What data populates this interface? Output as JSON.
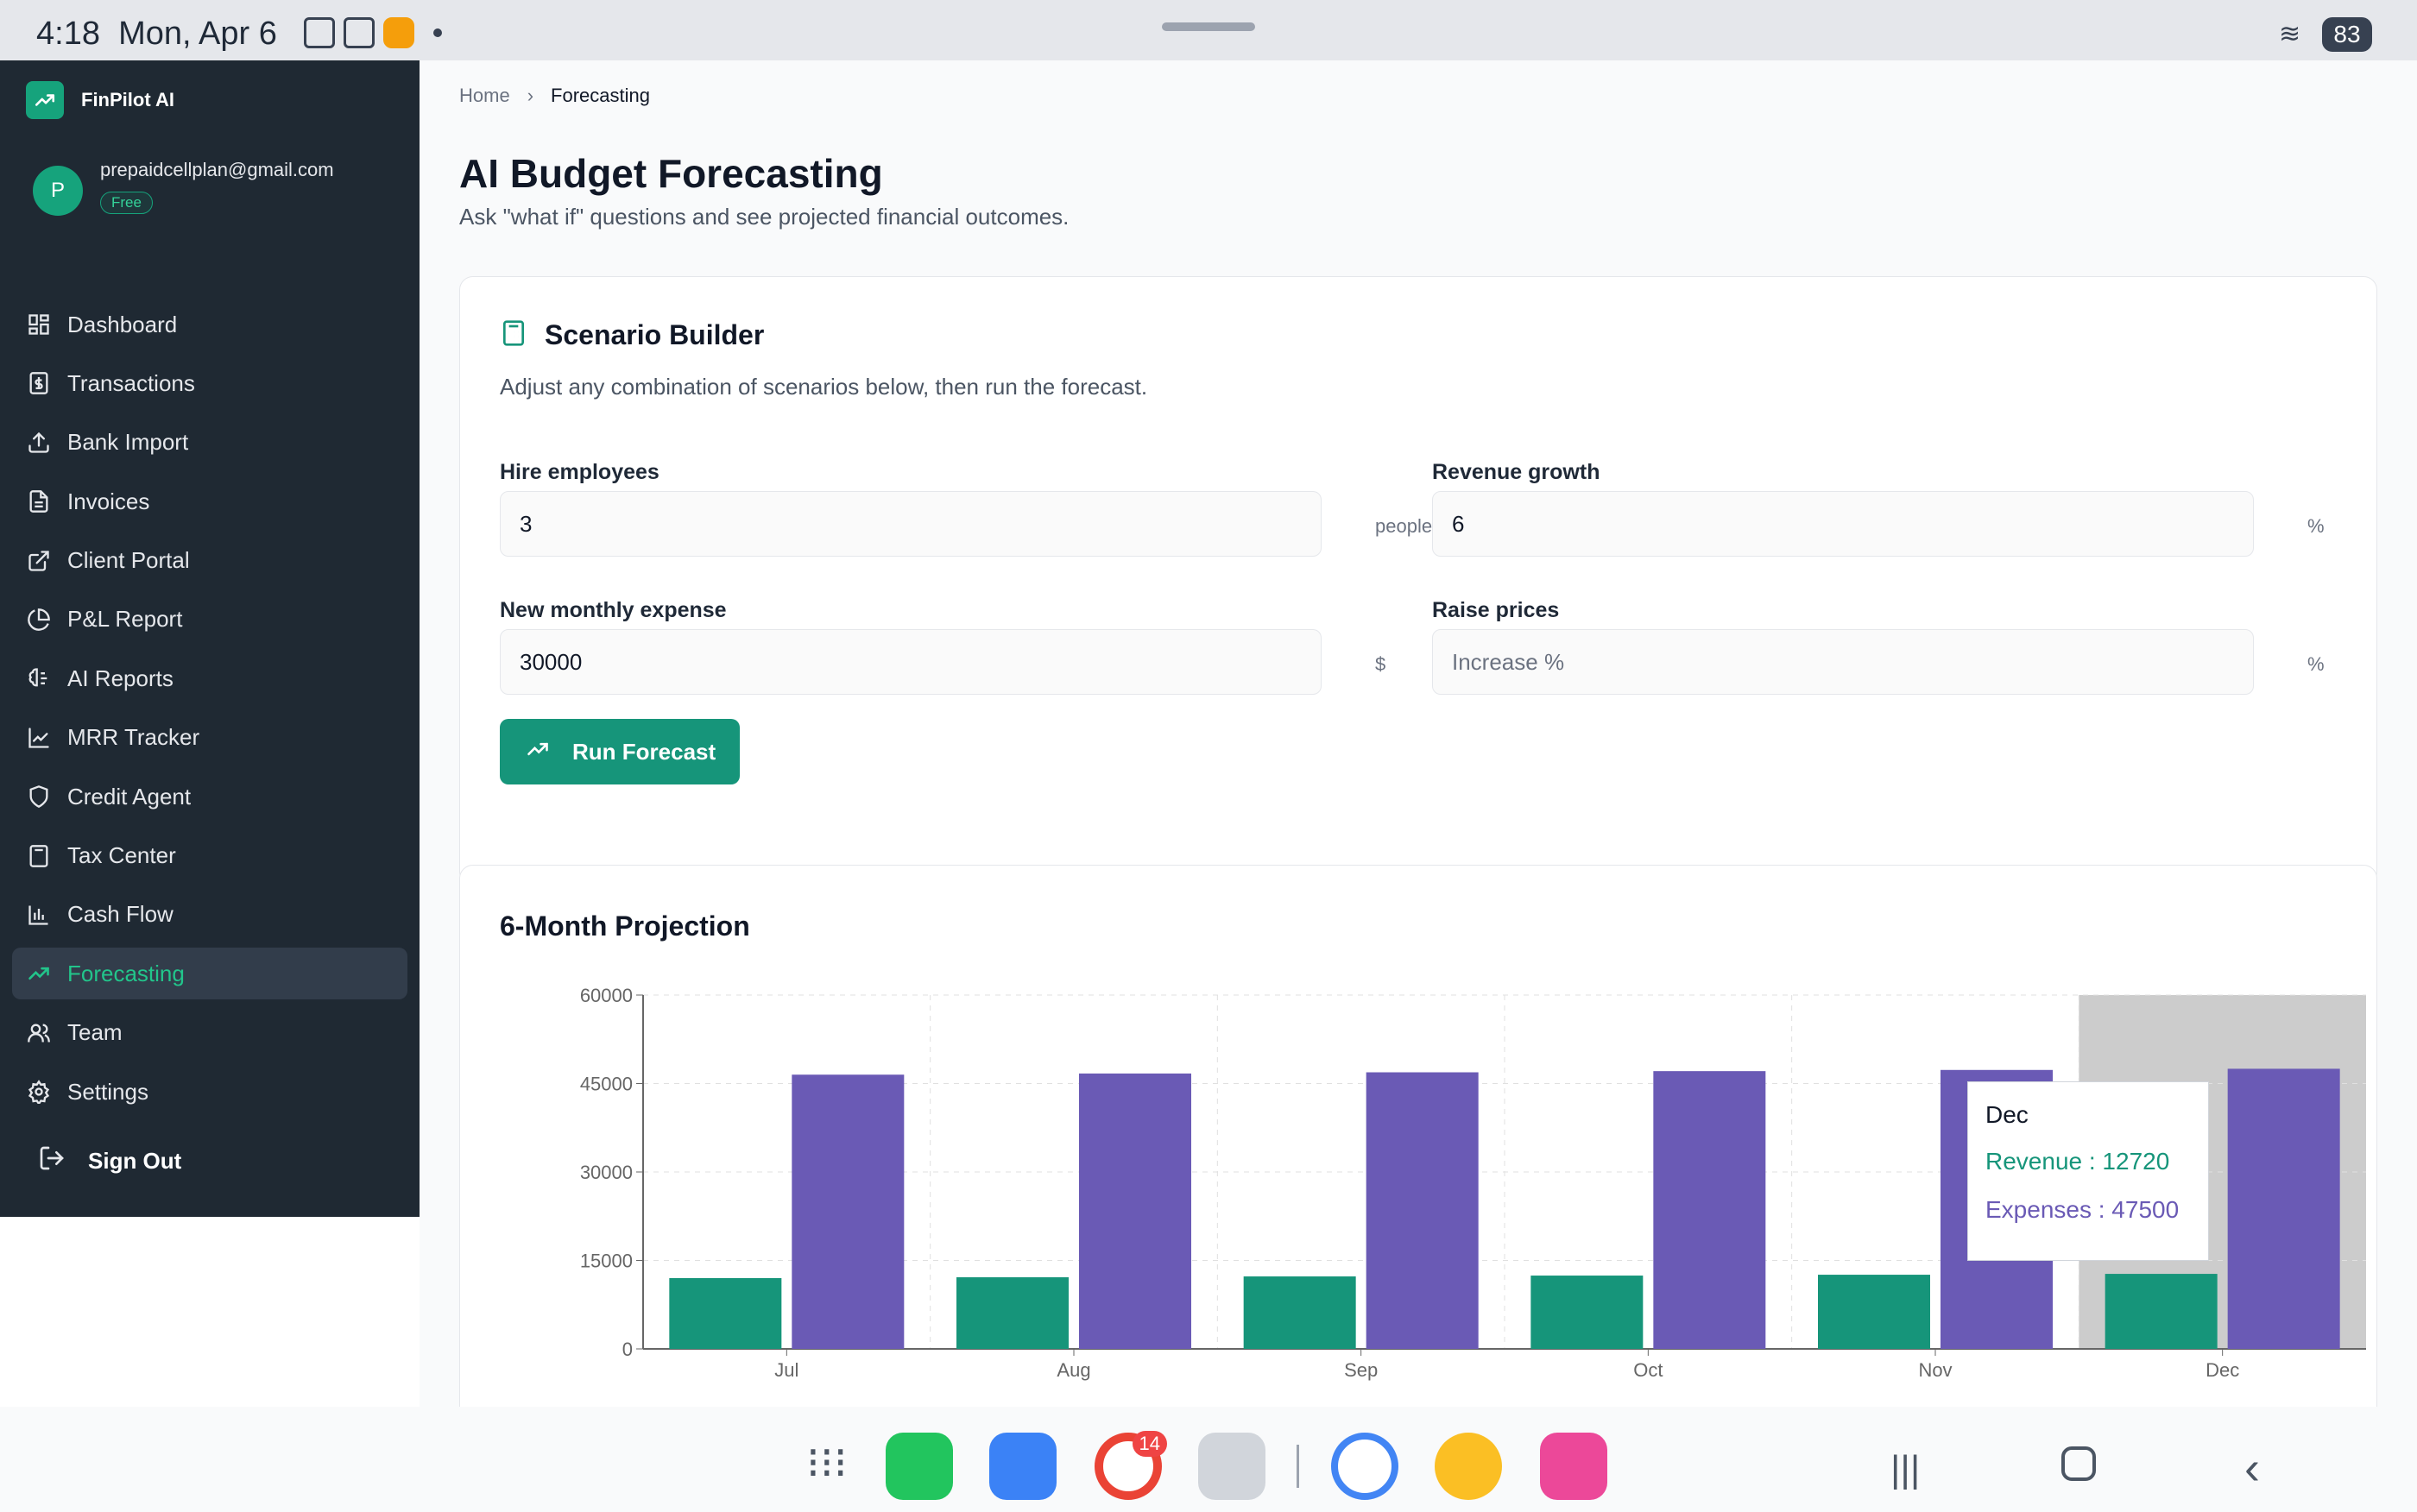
{
  "status_bar": {
    "time": "4:18",
    "date": "Mon, Apr 6",
    "battery": "83"
  },
  "brand": {
    "name": "FinPilot AI"
  },
  "user": {
    "initial": "P",
    "email": "prepaidcellplan@gmail.com",
    "plan": "Free"
  },
  "nav": {
    "items": [
      {
        "label": "Dashboard",
        "icon": "dashboard-icon"
      },
      {
        "label": "Transactions",
        "icon": "dollar-doc-icon"
      },
      {
        "label": "Bank Import",
        "icon": "upload-icon"
      },
      {
        "label": "Invoices",
        "icon": "document-icon"
      },
      {
        "label": "Client Portal",
        "icon": "external-link-icon"
      },
      {
        "label": "P&L Report",
        "icon": "pie-chart-icon"
      },
      {
        "label": "AI Reports",
        "icon": "brain-icon"
      },
      {
        "label": "MRR Tracker",
        "icon": "line-chart-icon"
      },
      {
        "label": "Credit Agent",
        "icon": "shield-icon"
      },
      {
        "label": "Tax Center",
        "icon": "calculator-icon"
      },
      {
        "label": "Cash Flow",
        "icon": "bar-chart-icon"
      },
      {
        "label": "Forecasting",
        "icon": "trending-up-icon",
        "active": true
      },
      {
        "label": "Team",
        "icon": "users-icon"
      },
      {
        "label": "Settings",
        "icon": "gear-icon"
      }
    ],
    "sign_out": "Sign Out"
  },
  "breadcrumb": {
    "home": "Home",
    "current": "Forecasting"
  },
  "page": {
    "title": "AI Budget Forecasting",
    "subtitle": "Ask \"what if\" questions and see projected financial outcomes."
  },
  "scenario": {
    "title": "Scenario Builder",
    "description": "Adjust any combination of scenarios below, then run the forecast.",
    "hire_label": "Hire employees",
    "hire_value": "3",
    "hire_unit": "people",
    "growth_label": "Revenue growth",
    "growth_value": "6",
    "growth_unit": "%",
    "expense_label": "New monthly expense",
    "expense_value": "30000",
    "expense_unit": "$",
    "price_label": "Raise prices",
    "price_placeholder": "Increase %",
    "price_unit": "%",
    "run_label": "Run Forecast"
  },
  "projection": {
    "title": "6-Month Projection"
  },
  "chart_data": {
    "type": "bar",
    "categories": [
      "Jul",
      "Aug",
      "Sep",
      "Oct",
      "Nov",
      "Dec"
    ],
    "series": [
      {
        "name": "Revenue",
        "color": "#16957a",
        "values": [
          12000,
          12144,
          12288,
          12432,
          12576,
          12720
        ]
      },
      {
        "name": "Expenses",
        "color": "#6a5ab5",
        "values": [
          46500,
          46700,
          46900,
          47100,
          47300,
          47500
        ]
      }
    ],
    "yticks": [
      0,
      15000,
      30000,
      45000,
      60000
    ],
    "ylim": [
      0,
      60000
    ],
    "grid": true,
    "highlighted_category": "Dec"
  },
  "tooltip": {
    "title": "Dec",
    "revenue": "Revenue : 12720",
    "expenses": "Expenses : 47500"
  },
  "dock": {
    "chrome_badge": "14"
  }
}
